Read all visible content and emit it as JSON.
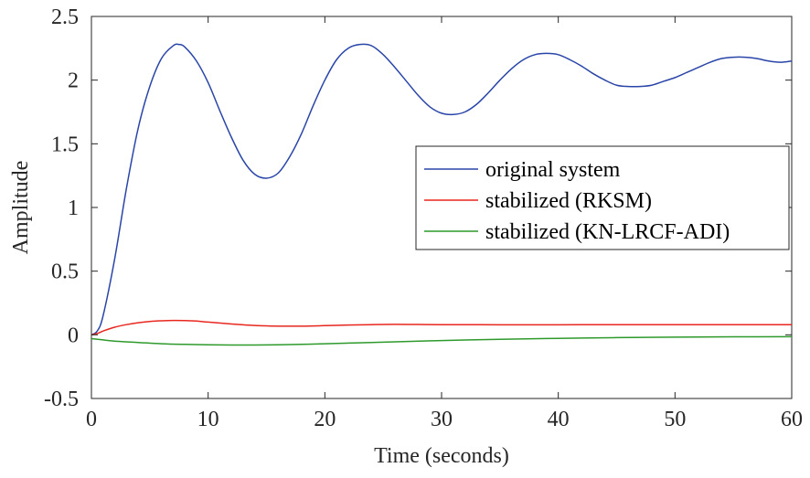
{
  "chart_data": {
    "type": "line",
    "title": "",
    "xlabel": "Time (seconds)",
    "ylabel": "Amplitude",
    "xlim": [
      0,
      60
    ],
    "ylim": [
      -0.5,
      2.5
    ],
    "xticks": [
      0,
      10,
      20,
      30,
      40,
      50,
      60
    ],
    "xtick_labels": [
      "0",
      "10",
      "20",
      "30",
      "40",
      "50",
      "60"
    ],
    "yticks": [
      -0.5,
      0,
      0.5,
      1,
      1.5,
      2,
      2.5
    ],
    "ytick_labels": [
      "-0.5",
      "0",
      "0.5",
      "1",
      "1.5",
      "2",
      "2.5"
    ],
    "grid": false,
    "legend": "right",
    "series": [
      {
        "name": "original system",
        "color": "#2a45a8",
        "x": [
          0,
          0.5,
          1,
          2,
          3,
          4,
          5,
          6,
          7,
          7.5,
          8,
          9,
          10,
          11,
          12,
          13,
          14,
          15,
          16,
          17,
          18,
          19,
          20,
          21,
          22,
          23,
          24,
          25,
          26,
          27,
          28,
          29,
          30,
          31,
          32,
          33,
          34,
          35,
          36,
          37,
          38,
          39,
          40,
          41,
          42,
          43,
          44,
          45,
          46,
          47,
          48,
          49,
          50,
          51,
          52,
          53,
          54,
          55,
          56,
          57,
          58,
          59,
          60
        ],
        "y": [
          0,
          0.03,
          0.15,
          0.6,
          1.15,
          1.62,
          1.95,
          2.17,
          2.27,
          2.28,
          2.26,
          2.15,
          1.98,
          1.76,
          1.55,
          1.37,
          1.26,
          1.23,
          1.27,
          1.4,
          1.58,
          1.8,
          2.0,
          2.16,
          2.25,
          2.28,
          2.27,
          2.2,
          2.1,
          1.99,
          1.88,
          1.79,
          1.74,
          1.73,
          1.75,
          1.81,
          1.9,
          2.0,
          2.09,
          2.16,
          2.2,
          2.21,
          2.2,
          2.16,
          2.11,
          2.05,
          2.0,
          1.96,
          1.95,
          1.95,
          1.96,
          1.99,
          2.02,
          2.06,
          2.1,
          2.14,
          2.17,
          2.18,
          2.18,
          2.17,
          2.15,
          2.14,
          2.15
        ]
      },
      {
        "name": "stabilized (RKSM)",
        "color": "#e8271f",
        "x": [
          0,
          0.5,
          1,
          2,
          3,
          4,
          5,
          6,
          7,
          8,
          9,
          10,
          12,
          14,
          16,
          18,
          20,
          22,
          24,
          26,
          28,
          30,
          35,
          40,
          45,
          50,
          55,
          60
        ],
        "y": [
          0,
          0.01,
          0.03,
          0.06,
          0.08,
          0.095,
          0.105,
          0.11,
          0.113,
          0.112,
          0.108,
          0.1,
          0.085,
          0.073,
          0.068,
          0.068,
          0.072,
          0.077,
          0.08,
          0.082,
          0.081,
          0.08,
          0.079,
          0.079,
          0.08,
          0.08,
          0.08,
          0.08
        ]
      },
      {
        "name": "stabilized (KN-LRCF-ADI)",
        "color": "#2e9a2c",
        "x": [
          0,
          1,
          2,
          4,
          6,
          8,
          10,
          12,
          14,
          16,
          18,
          20,
          25,
          30,
          35,
          40,
          45,
          50,
          55,
          60
        ],
        "y": [
          -0.03,
          -0.04,
          -0.05,
          -0.06,
          -0.07,
          -0.075,
          -0.078,
          -0.08,
          -0.08,
          -0.078,
          -0.075,
          -0.07,
          -0.058,
          -0.045,
          -0.035,
          -0.028,
          -0.022,
          -0.018,
          -0.016,
          -0.015
        ]
      }
    ]
  }
}
